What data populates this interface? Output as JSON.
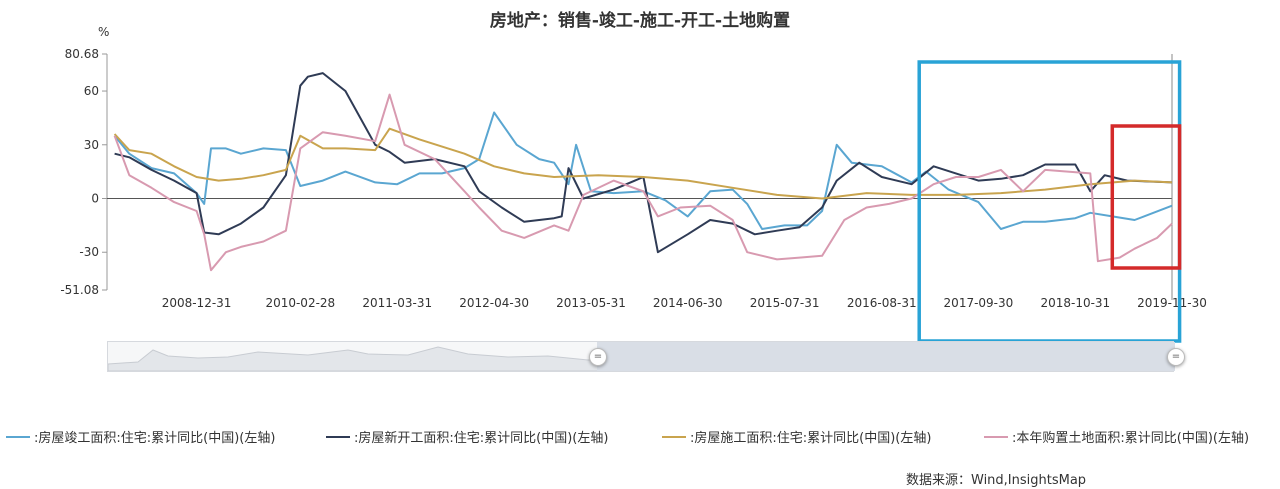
{
  "chart_data": {
    "type": "line",
    "title": "房地产：销售-竣工-施工-开工-土地购置",
    "ylabel": "%",
    "ylim": [
      -51.08,
      80.68
    ],
    "y_ticks": [
      "80.68",
      "60",
      "30",
      "0",
      "-30",
      "-51.08"
    ],
    "x_ticks": [
      "2008-12-31",
      "2010-02-28",
      "2011-03-31",
      "2012-04-30",
      "2013-05-31",
      "2014-06-30",
      "2015-07-31",
      "2016-08-31",
      "2017-09-30",
      "2018-10-31",
      "2019-11-30"
    ],
    "x_range": [
      "2007-12-31",
      "2019-11-30"
    ],
    "series": [
      {
        "name": ":房屋竣工面积:住宅:累计同比(中国)(左轴)",
        "color": "#5aa6d1",
        "points": [
          [
            "2008-01-31",
            35
          ],
          [
            "2008-03-31",
            25
          ],
          [
            "2008-06-30",
            17
          ],
          [
            "2008-09-30",
            14
          ],
          [
            "2008-12-31",
            3
          ],
          [
            "2009-01-31",
            -3
          ],
          [
            "2009-02-28",
            28
          ],
          [
            "2009-04-30",
            28
          ],
          [
            "2009-06-30",
            25
          ],
          [
            "2009-09-30",
            28
          ],
          [
            "2009-12-31",
            27
          ],
          [
            "2010-02-28",
            7
          ],
          [
            "2010-05-31",
            10
          ],
          [
            "2010-08-31",
            15
          ],
          [
            "2010-12-31",
            9
          ],
          [
            "2011-03-31",
            8
          ],
          [
            "2011-06-30",
            14
          ],
          [
            "2011-09-30",
            14
          ],
          [
            "2011-12-31",
            17
          ],
          [
            "2012-02-29",
            22
          ],
          [
            "2012-04-30",
            48
          ],
          [
            "2012-07-31",
            30
          ],
          [
            "2012-10-31",
            22
          ],
          [
            "2012-12-31",
            20
          ],
          [
            "2013-02-28",
            8
          ],
          [
            "2013-03-31",
            30
          ],
          [
            "2013-05-31",
            4
          ],
          [
            "2013-08-31",
            3
          ],
          [
            "2013-12-31",
            4
          ],
          [
            "2014-03-31",
            -1
          ],
          [
            "2014-06-30",
            -10
          ],
          [
            "2014-09-30",
            4
          ],
          [
            "2014-12-31",
            5
          ],
          [
            "2015-02-28",
            -3
          ],
          [
            "2015-04-30",
            -17
          ],
          [
            "2015-07-31",
            -15
          ],
          [
            "2015-10-31",
            -15
          ],
          [
            "2015-12-31",
            -7
          ],
          [
            "2016-02-29",
            30
          ],
          [
            "2016-04-30",
            20
          ],
          [
            "2016-08-31",
            18
          ],
          [
            "2016-12-31",
            9
          ],
          [
            "2017-02-28",
            15
          ],
          [
            "2017-05-31",
            5
          ],
          [
            "2017-09-30",
            -2
          ],
          [
            "2017-12-31",
            -17
          ],
          [
            "2018-03-31",
            -13
          ],
          [
            "2018-06-30",
            -13
          ],
          [
            "2018-10-31",
            -11
          ],
          [
            "2018-12-31",
            -8
          ],
          [
            "2019-03-31",
            -10
          ],
          [
            "2019-06-30",
            -12
          ],
          [
            "2019-11-30",
            -4
          ]
        ]
      },
      {
        "name": ":房屋新开工面积:住宅:累计同比(中国)(左轴)",
        "color": "#2f3b55",
        "points": [
          [
            "2008-01-31",
            25
          ],
          [
            "2008-03-31",
            23
          ],
          [
            "2008-06-30",
            16
          ],
          [
            "2008-09-30",
            10
          ],
          [
            "2008-12-31",
            3
          ],
          [
            "2009-01-31",
            -19
          ],
          [
            "2009-03-31",
            -20
          ],
          [
            "2009-06-30",
            -14
          ],
          [
            "2009-09-30",
            -5
          ],
          [
            "2009-12-31",
            13
          ],
          [
            "2010-02-28",
            63
          ],
          [
            "2010-03-31",
            68
          ],
          [
            "2010-05-31",
            70
          ],
          [
            "2010-08-31",
            60
          ],
          [
            "2010-12-31",
            30
          ],
          [
            "2011-02-28",
            26
          ],
          [
            "2011-04-30",
            20
          ],
          [
            "2011-08-31",
            22
          ],
          [
            "2011-12-31",
            18
          ],
          [
            "2012-02-29",
            4
          ],
          [
            "2012-05-31",
            -5
          ],
          [
            "2012-08-31",
            -13
          ],
          [
            "2012-12-31",
            -11
          ],
          [
            "2013-01-31",
            -10
          ],
          [
            "2013-02-28",
            17
          ],
          [
            "2013-04-30",
            0
          ],
          [
            "2013-08-31",
            5
          ],
          [
            "2013-12-31",
            12
          ],
          [
            "2014-02-28",
            -30
          ],
          [
            "2014-06-30",
            -20
          ],
          [
            "2014-09-30",
            -12
          ],
          [
            "2014-12-31",
            -14
          ],
          [
            "2015-03-31",
            -20
          ],
          [
            "2015-06-30",
            -18
          ],
          [
            "2015-09-30",
            -16
          ],
          [
            "2015-12-31",
            -5
          ],
          [
            "2016-02-29",
            10
          ],
          [
            "2016-05-31",
            20
          ],
          [
            "2016-08-31",
            12
          ],
          [
            "2016-12-31",
            8
          ],
          [
            "2017-03-31",
            18
          ],
          [
            "2017-06-30",
            14
          ],
          [
            "2017-09-30",
            10
          ],
          [
            "2017-12-31",
            11
          ],
          [
            "2018-03-31",
            13
          ],
          [
            "2018-06-30",
            19
          ],
          [
            "2018-10-31",
            19
          ],
          [
            "2018-12-31",
            4
          ],
          [
            "2019-02-28",
            13
          ],
          [
            "2019-05-31",
            10
          ],
          [
            "2019-11-30",
            9
          ]
        ]
      },
      {
        "name": ":房屋施工面积:住宅:累计同比(中国)(左轴)",
        "color": "#c9a44e",
        "points": [
          [
            "2008-01-31",
            36
          ],
          [
            "2008-03-31",
            27
          ],
          [
            "2008-06-30",
            25
          ],
          [
            "2008-09-30",
            18
          ],
          [
            "2008-12-31",
            12
          ],
          [
            "2009-03-31",
            10
          ],
          [
            "2009-06-30",
            11
          ],
          [
            "2009-09-30",
            13
          ],
          [
            "2009-12-31",
            16
          ],
          [
            "2010-02-28",
            35
          ],
          [
            "2010-05-31",
            28
          ],
          [
            "2010-08-31",
            28
          ],
          [
            "2010-12-31",
            27
          ],
          [
            "2011-02-28",
            39
          ],
          [
            "2011-06-30",
            33
          ],
          [
            "2011-12-31",
            25
          ],
          [
            "2012-04-30",
            18
          ],
          [
            "2012-08-31",
            14
          ],
          [
            "2012-12-31",
            12
          ],
          [
            "2013-06-30",
            13
          ],
          [
            "2013-12-31",
            12
          ],
          [
            "2014-06-30",
            10
          ],
          [
            "2014-12-31",
            6
          ],
          [
            "2015-06-30",
            2
          ],
          [
            "2015-12-31",
            0
          ],
          [
            "2016-06-30",
            3
          ],
          [
            "2016-12-31",
            2
          ],
          [
            "2017-06-30",
            2
          ],
          [
            "2017-12-31",
            3
          ],
          [
            "2018-06-30",
            5
          ],
          [
            "2018-12-31",
            8
          ],
          [
            "2019-06-30",
            10
          ],
          [
            "2019-11-30",
            9
          ]
        ]
      },
      {
        "name": ":本年购置土地面积:累计同比(中国)(左轴)",
        "color": "#d89ab0",
        "points": [
          [
            "2008-01-31",
            35
          ],
          [
            "2008-03-31",
            13
          ],
          [
            "2008-06-30",
            6
          ],
          [
            "2008-09-30",
            -2
          ],
          [
            "2008-12-31",
            -7
          ],
          [
            "2009-01-31",
            -20
          ],
          [
            "2009-02-28",
            -40
          ],
          [
            "2009-04-30",
            -30
          ],
          [
            "2009-06-30",
            -27
          ],
          [
            "2009-09-30",
            -24
          ],
          [
            "2009-12-31",
            -18
          ],
          [
            "2010-02-28",
            28
          ],
          [
            "2010-05-31",
            37
          ],
          [
            "2010-08-31",
            35
          ],
          [
            "2010-12-31",
            32
          ],
          [
            "2011-02-28",
            58
          ],
          [
            "2011-04-30",
            30
          ],
          [
            "2011-08-31",
            22
          ],
          [
            "2011-12-31",
            4
          ],
          [
            "2012-02-29",
            -5
          ],
          [
            "2012-05-31",
            -18
          ],
          [
            "2012-08-31",
            -22
          ],
          [
            "2012-12-31",
            -15
          ],
          [
            "2013-02-28",
            -18
          ],
          [
            "2013-04-30",
            2
          ],
          [
            "2013-08-31",
            10
          ],
          [
            "2013-12-31",
            4
          ],
          [
            "2014-02-28",
            -10
          ],
          [
            "2014-05-31",
            -5
          ],
          [
            "2014-09-30",
            -4
          ],
          [
            "2014-12-31",
            -12
          ],
          [
            "2015-02-28",
            -30
          ],
          [
            "2015-06-30",
            -34
          ],
          [
            "2015-09-30",
            -33
          ],
          [
            "2015-12-31",
            -32
          ],
          [
            "2016-03-31",
            -12
          ],
          [
            "2016-06-30",
            -5
          ],
          [
            "2016-09-30",
            -3
          ],
          [
            "2016-12-31",
            0
          ],
          [
            "2017-03-31",
            8
          ],
          [
            "2017-06-30",
            12
          ],
          [
            "2017-09-30",
            12
          ],
          [
            "2017-12-31",
            16
          ],
          [
            "2018-03-31",
            4
          ],
          [
            "2018-06-30",
            16
          ],
          [
            "2018-09-30",
            15
          ],
          [
            "2018-12-31",
            14
          ],
          [
            "2019-01-31",
            -35
          ],
          [
            "2019-04-30",
            -33
          ],
          [
            "2019-06-30",
            -28
          ],
          [
            "2019-09-30",
            -22
          ],
          [
            "2019-11-30",
            -14
          ]
        ]
      }
    ],
    "highlight_boxes": [
      {
        "color": "#29a3d6",
        "x_from": "2017-01-31",
        "x_to": "2019-12-31"
      },
      {
        "color": "#d42a2a",
        "x_from": "2019-03-31",
        "x_to": "2019-12-31"
      }
    ],
    "legend_position": "bottom",
    "grid": false
  },
  "source_text": "数据来源：Wind,InsightsMap",
  "slider": {
    "handle_left_glyph": "=",
    "handle_right_glyph": "="
  }
}
